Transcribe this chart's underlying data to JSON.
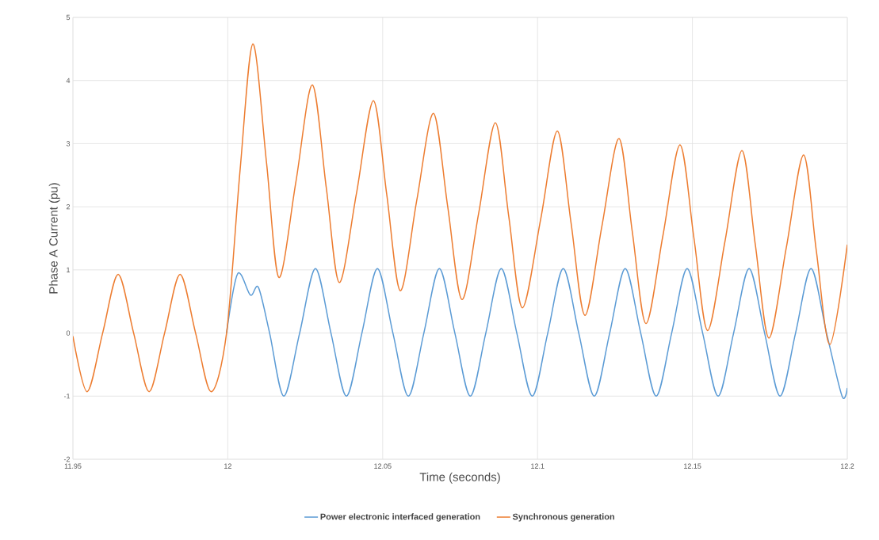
{
  "chart_data": {
    "type": "line",
    "xlabel": "Time (seconds)",
    "ylabel": "Phase A Current (pu)",
    "xlim": [
      11.95,
      12.2
    ],
    "xticks": [
      11.95,
      12,
      12.05,
      12.1,
      12.15,
      12.2
    ],
    "ylim": [
      -2,
      5
    ],
    "yticks": [
      -2,
      -1,
      0,
      1,
      2,
      3,
      4,
      5
    ],
    "grid": true,
    "legend": "bottom",
    "marker": "none",
    "line_style": "solid",
    "series": [
      {
        "name": "Power electronic interfaced generation",
        "color": "#5b9bd5",
        "x": [
          11.9996,
          12.0032,
          12.0073,
          12.0099,
          12.0135,
          12.0181,
          12.0232,
          12.0283,
          12.0333,
          12.0383,
          12.0433,
          12.0483,
          12.0533,
          12.0583,
          12.0633,
          12.0683,
          12.0733,
          12.0783,
          12.0833,
          12.0883,
          12.0933,
          12.0983,
          12.1033,
          12.1083,
          12.1133,
          12.1183,
          12.1233,
          12.1283,
          12.1333,
          12.1383,
          12.1433,
          12.1483,
          12.1533,
          12.1583,
          12.1633,
          12.1683,
          12.1733,
          12.1783,
          12.1833,
          12.1883,
          12.1933,
          12.1983,
          12.2
        ],
        "values": [
          0,
          0.94,
          0.6,
          0.72,
          0,
          -1.0,
          0,
          1.02,
          0,
          -1.0,
          0,
          1.02,
          0,
          -1.0,
          0,
          1.02,
          0,
          -1.0,
          0,
          1.02,
          0,
          -1.0,
          0,
          1.02,
          0,
          -1.0,
          0,
          1.02,
          0,
          -1.0,
          0,
          1.02,
          0,
          -1.0,
          0,
          1.02,
          0,
          -1.0,
          0,
          1.02,
          0,
          -1.0,
          -0.87
        ]
      },
      {
        "name": "Synchronous generation",
        "color": "#ed7d31",
        "x": [
          11.95,
          11.9546,
          11.9596,
          11.9646,
          11.9696,
          11.9746,
          11.9796,
          11.9846,
          11.9896,
          11.9946,
          11.9996,
          12.004,
          12.0081,
          12.0125,
          12.0165,
          12.022,
          12.0273,
          12.0318,
          12.036,
          12.0415,
          12.047,
          12.0513,
          12.0557,
          12.061,
          12.0664,
          12.071,
          12.0756,
          12.081,
          12.0864,
          12.0907,
          12.0951,
          12.101,
          12.1064,
          12.1108,
          12.1153,
          12.1208,
          12.1263,
          12.1306,
          12.135,
          12.1405,
          12.146,
          12.1505,
          12.1549,
          12.1605,
          12.166,
          12.1703,
          12.1747,
          12.1803,
          12.1859,
          12.19,
          12.1944,
          12.2
        ],
        "values": [
          -0.05,
          -0.93,
          0,
          0.93,
          0,
          -0.93,
          0,
          0.93,
          0,
          -0.93,
          0,
          2.6,
          4.58,
          2.7,
          0.88,
          2.4,
          3.93,
          2.3,
          0.8,
          2.2,
          3.68,
          2.2,
          0.67,
          2.1,
          3.48,
          2.0,
          0.53,
          1.9,
          3.33,
          1.85,
          0.4,
          1.8,
          3.2,
          1.75,
          0.28,
          1.7,
          3.08,
          1.6,
          0.15,
          1.55,
          2.98,
          1.5,
          0.04,
          1.45,
          2.89,
          1.4,
          -0.08,
          1.35,
          2.82,
          1.3,
          -0.18,
          1.4
        ]
      }
    ]
  }
}
